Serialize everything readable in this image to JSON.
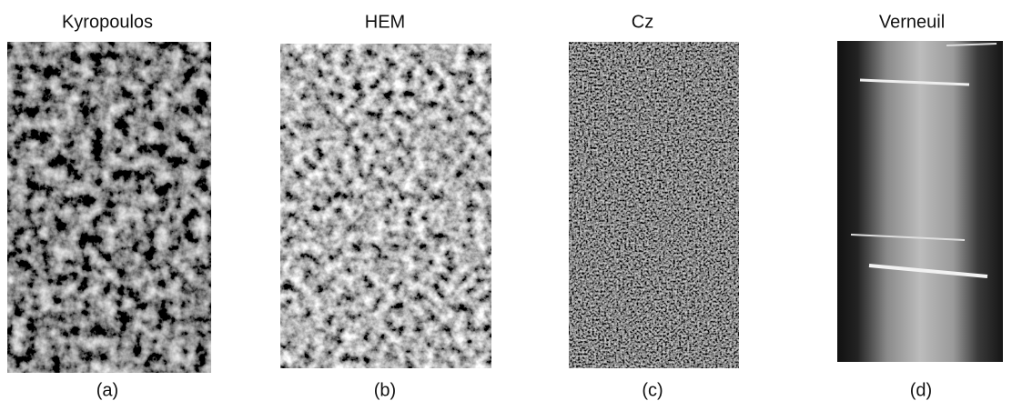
{
  "panels": [
    {
      "title": "Kyropoulos",
      "caption": "(a)"
    },
    {
      "title": "HEM",
      "caption": "(b)"
    },
    {
      "title": "Cz",
      "caption": "(c)"
    },
    {
      "title": "Verneuil",
      "caption": "(d)"
    }
  ]
}
